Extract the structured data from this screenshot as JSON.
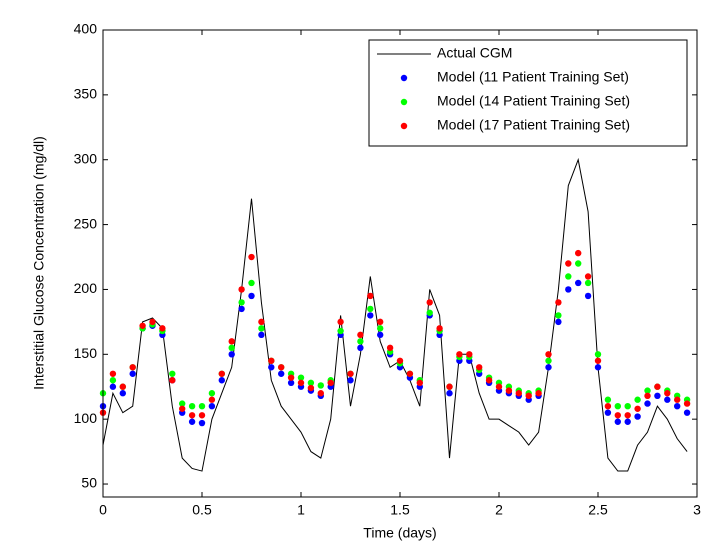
{
  "chart_data": {
    "type": "line",
    "xlabel": "Time (days)",
    "ylabel": "Interstitial Glucose Concentration (mg/dl)",
    "x": [
      0,
      0.05,
      0.1,
      0.15,
      0.2,
      0.25,
      0.3,
      0.35,
      0.4,
      0.45,
      0.5,
      0.55,
      0.6,
      0.65,
      0.7,
      0.75,
      0.8,
      0.85,
      0.9,
      0.95,
      1,
      1.05,
      1.1,
      1.15,
      1.2,
      1.25,
      1.3,
      1.35,
      1.4,
      1.45,
      1.5,
      1.55,
      1.6,
      1.65,
      1.7,
      1.75,
      1.8,
      1.85,
      1.9,
      1.95,
      2,
      2.05,
      2.1,
      2.15,
      2.2,
      2.25,
      2.3,
      2.35,
      2.4,
      2.45,
      2.5,
      2.55,
      2.6,
      2.65,
      2.7,
      2.75,
      2.8,
      2.85,
      2.9,
      2.95
    ],
    "series": [
      {
        "name": "Actual CGM",
        "color": "#000000",
        "style": "line",
        "values": [
          80,
          120,
          105,
          110,
          175,
          178,
          170,
          110,
          70,
          62,
          60,
          100,
          120,
          140,
          200,
          270,
          190,
          130,
          110,
          100,
          90,
          75,
          70,
          100,
          180,
          110,
          150,
          210,
          160,
          140,
          145,
          130,
          110,
          200,
          180,
          70,
          150,
          150,
          120,
          100,
          100,
          95,
          90,
          80,
          90,
          140,
          200,
          280,
          300,
          260,
          140,
          70,
          60,
          60,
          80,
          90,
          110,
          100,
          85,
          75
        ]
      },
      {
        "name": "Model (11 Patient Training Set)",
        "color": "#0000ff",
        "style": "dots",
        "values": [
          110,
          125,
          120,
          135,
          170,
          172,
          165,
          130,
          105,
          98,
          97,
          110,
          130,
          150,
          185,
          195,
          165,
          140,
          135,
          128,
          125,
          122,
          118,
          125,
          165,
          130,
          155,
          180,
          165,
          150,
          140,
          132,
          125,
          180,
          165,
          120,
          145,
          145,
          135,
          128,
          122,
          120,
          118,
          115,
          118,
          140,
          175,
          200,
          205,
          195,
          140,
          105,
          98,
          98,
          102,
          112,
          118,
          115,
          110,
          105
        ]
      },
      {
        "name": "Model (14 Patient Training Set)",
        "color": "#00ff00",
        "style": "dots",
        "values": [
          120,
          130,
          125,
          140,
          170,
          173,
          168,
          135,
          112,
          110,
          110,
          120,
          135,
          155,
          190,
          205,
          170,
          145,
          140,
          135,
          132,
          128,
          126,
          130,
          168,
          135,
          160,
          185,
          170,
          152,
          143,
          135,
          130,
          182,
          168,
          125,
          148,
          148,
          138,
          132,
          128,
          125,
          122,
          120,
          122,
          145,
          180,
          210,
          220,
          205,
          150,
          115,
          110,
          110,
          115,
          122,
          125,
          122,
          118,
          115
        ]
      },
      {
        "name": "Model (17 Patient Training Set)",
        "color": "#ff0000",
        "style": "dots",
        "values": [
          105,
          135,
          125,
          140,
          172,
          175,
          170,
          130,
          108,
          103,
          103,
          115,
          135,
          160,
          200,
          225,
          175,
          145,
          140,
          132,
          128,
          124,
          120,
          128,
          175,
          135,
          165,
          195,
          175,
          155,
          145,
          135,
          128,
          190,
          170,
          125,
          150,
          150,
          140,
          130,
          125,
          122,
          120,
          118,
          120,
          150,
          190,
          220,
          228,
          210,
          145,
          110,
          103,
          103,
          108,
          118,
          125,
          120,
          115,
          112
        ]
      }
    ],
    "xlim": [
      0,
      3
    ],
    "xticks": [
      0,
      0.5,
      1,
      1.5,
      2,
      2.5,
      3
    ],
    "ylim": [
      40,
      400
    ],
    "yticks": [
      50,
      100,
      150,
      200,
      250,
      300,
      350,
      400
    ],
    "grid": false,
    "legend": "upper right"
  }
}
